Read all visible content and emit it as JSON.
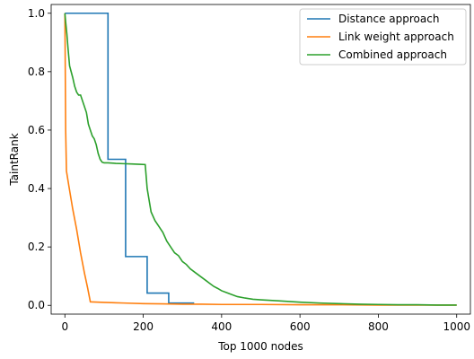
{
  "chart_data": {
    "type": "line",
    "title": "",
    "xlabel": "Top 1000 nodes",
    "ylabel": "TaintRank",
    "xlim": [
      -35,
      1035
    ],
    "ylim": [
      -0.03,
      1.03
    ],
    "xticks": [
      0,
      200,
      400,
      600,
      800,
      1000
    ],
    "xtick_labels": [
      "0",
      "200",
      "400",
      "600",
      "800",
      "1000"
    ],
    "yticks": [
      0.0,
      0.2,
      0.4,
      0.6,
      0.8,
      1.0
    ],
    "ytick_labels": [
      "0.0",
      "0.2",
      "0.4",
      "0.6",
      "0.8",
      "1.0"
    ],
    "grid": false,
    "legend_position": "top-right",
    "series": [
      {
        "name": "Distance approach",
        "color": "#1f77b4",
        "step": true,
        "x": [
          0,
          110,
          110,
          155,
          155,
          210,
          210,
          265,
          265,
          330
        ],
        "y": [
          1.0,
          1.0,
          0.5,
          0.5,
          0.167,
          0.167,
          0.042,
          0.042,
          0.008,
          0.008
        ]
      },
      {
        "name": "Link weight approach",
        "color": "#ff7f0e",
        "step": false,
        "x": [
          0,
          2,
          4,
          10,
          20,
          30,
          40,
          50,
          58,
          65,
          100,
          150,
          200,
          250,
          300,
          350,
          400,
          500,
          600,
          700,
          800,
          900,
          1000
        ],
        "y": [
          1.0,
          0.6,
          0.46,
          0.41,
          0.33,
          0.26,
          0.18,
          0.11,
          0.06,
          0.012,
          0.01,
          0.008,
          0.006,
          0.005,
          0.004,
          0.004,
          0.003,
          0.003,
          0.002,
          0.002,
          0.001,
          0.001,
          0.001
        ]
      },
      {
        "name": "Combined approach",
        "color": "#2ca02c",
        "step": false,
        "x": [
          0,
          2,
          5,
          8,
          12,
          16,
          20,
          25,
          30,
          35,
          40,
          45,
          50,
          55,
          60,
          65,
          70,
          75,
          80,
          85,
          90,
          95,
          100,
          110,
          130,
          150,
          170,
          190,
          205,
          210,
          220,
          230,
          240,
          250,
          260,
          270,
          280,
          290,
          300,
          310,
          320,
          330,
          340,
          350,
          360,
          370,
          380,
          390,
          400,
          420,
          440,
          460,
          480,
          500,
          550,
          600,
          650,
          700,
          750,
          800,
          850,
          900,
          950,
          1000
        ],
        "y": [
          1.0,
          0.97,
          0.93,
          0.88,
          0.82,
          0.8,
          0.78,
          0.75,
          0.73,
          0.72,
          0.72,
          0.7,
          0.68,
          0.66,
          0.62,
          0.6,
          0.58,
          0.57,
          0.55,
          0.52,
          0.5,
          0.49,
          0.488,
          0.488,
          0.486,
          0.485,
          0.484,
          0.483,
          0.482,
          0.4,
          0.32,
          0.29,
          0.27,
          0.25,
          0.22,
          0.2,
          0.18,
          0.17,
          0.15,
          0.14,
          0.125,
          0.115,
          0.105,
          0.095,
          0.085,
          0.075,
          0.065,
          0.058,
          0.05,
          0.04,
          0.03,
          0.025,
          0.021,
          0.019,
          0.015,
          0.011,
          0.008,
          0.006,
          0.004,
          0.003,
          0.002,
          0.002,
          0.001,
          0.001
        ]
      }
    ]
  }
}
